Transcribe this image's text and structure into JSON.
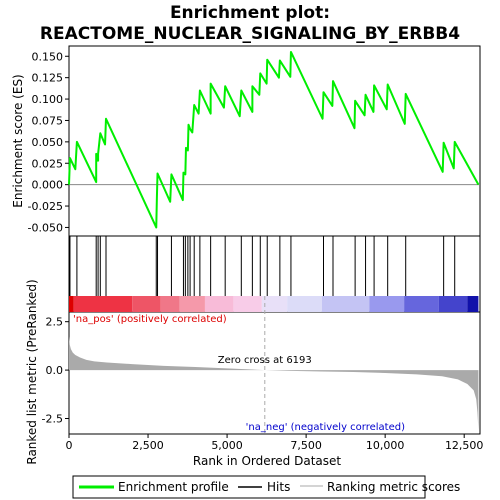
{
  "chart_data": {
    "type": "line",
    "title_line1": "Enrichment plot:",
    "title_line2": "REACTOME_NUCLEAR_SIGNALING_BY_ERBB4",
    "xlabel": "Rank in Ordered Dataset",
    "ylabel_top": "Enrichment score (ES)",
    "ylabel_bottom": "Ranked list metric (PreRanked)",
    "xlim": [
      0,
      13000
    ],
    "es_ylim": [
      -0.06,
      0.162
    ],
    "metric_ylim": [
      -3.3,
      3.0
    ],
    "x_ticks": [
      {
        "value": 0,
        "label": "0"
      },
      {
        "value": 2500,
        "label": "2,500"
      },
      {
        "value": 5000,
        "label": "5,000"
      },
      {
        "value": 7500,
        "label": "7,500"
      },
      {
        "value": 10000,
        "label": "10,000"
      },
      {
        "value": 12500,
        "label": "12,500"
      }
    ],
    "es_ticks": [
      {
        "value": 0.15,
        "label": "0.150"
      },
      {
        "value": 0.125,
        "label": "0.125"
      },
      {
        "value": 0.1,
        "label": "0.100"
      },
      {
        "value": 0.075,
        "label": "0.075"
      },
      {
        "value": 0.05,
        "label": "0.050"
      },
      {
        "value": 0.025,
        "label": "0.025"
      },
      {
        "value": 0.0,
        "label": "0.000"
      },
      {
        "value": -0.025,
        "label": "-0.025"
      },
      {
        "value": -0.05,
        "label": "-0.050"
      }
    ],
    "metric_ticks": [
      {
        "value": 2.5,
        "label": "2.5"
      },
      {
        "value": 0.0,
        "label": "0.0"
      },
      {
        "value": -2.5,
        "label": "-2.5"
      }
    ],
    "hits": [
      30,
      250,
      860,
      920,
      990,
      1170,
      2760,
      2800,
      3240,
      3620,
      3680,
      3760,
      3830,
      3960,
      4140,
      4480,
      4940,
      5450,
      5800,
      6050,
      6270,
      6670,
      7020,
      8050,
      8350,
      9050,
      9380,
      9650,
      10080,
      10650,
      11850,
      12200
    ],
    "es_profile": [
      [
        0,
        0.0
      ],
      [
        30,
        0.031
      ],
      [
        200,
        0.018
      ],
      [
        250,
        0.05
      ],
      [
        860,
        0.003
      ],
      [
        860,
        0.036
      ],
      [
        920,
        0.028
      ],
      [
        920,
        0.036
      ],
      [
        990,
        0.06
      ],
      [
        1140,
        0.047
      ],
      [
        1170,
        0.077
      ],
      [
        2760,
        -0.05
      ],
      [
        2780,
        -0.015
      ],
      [
        2800,
        0.013
      ],
      [
        3200,
        -0.02
      ],
      [
        3240,
        0.012
      ],
      [
        3600,
        -0.018
      ],
      [
        3620,
        0.014
      ],
      [
        3680,
        0.012
      ],
      [
        3700,
        0.043
      ],
      [
        3760,
        0.04
      ],
      [
        3780,
        0.07
      ],
      [
        3830,
        0.065
      ],
      [
        3900,
        0.061
      ],
      [
        3960,
        0.093
      ],
      [
        4100,
        0.083
      ],
      [
        4140,
        0.11
      ],
      [
        4480,
        0.083
      ],
      [
        4480,
        0.118
      ],
      [
        4900,
        0.09
      ],
      [
        4940,
        0.115
      ],
      [
        5400,
        0.08
      ],
      [
        5450,
        0.11
      ],
      [
        5800,
        0.085
      ],
      [
        5800,
        0.115
      ],
      [
        6020,
        0.105
      ],
      [
        6050,
        0.13
      ],
      [
        6250,
        0.118
      ],
      [
        6270,
        0.146
      ],
      [
        6640,
        0.125
      ],
      [
        6670,
        0.145
      ],
      [
        7000,
        0.126
      ],
      [
        7020,
        0.155
      ],
      [
        8020,
        0.077
      ],
      [
        8050,
        0.108
      ],
      [
        8330,
        0.092
      ],
      [
        8350,
        0.121
      ],
      [
        9030,
        0.066
      ],
      [
        9050,
        0.098
      ],
      [
        9350,
        0.081
      ],
      [
        9380,
        0.105
      ],
      [
        9630,
        0.085
      ],
      [
        9650,
        0.116
      ],
      [
        10050,
        0.088
      ],
      [
        10080,
        0.117
      ],
      [
        10620,
        0.071
      ],
      [
        10650,
        0.106
      ],
      [
        11820,
        0.015
      ],
      [
        11850,
        0.049
      ],
      [
        12170,
        0.019
      ],
      [
        12200,
        0.05
      ],
      [
        12950,
        0.0
      ]
    ],
    "metric_curve": [
      [
        0,
        1.75
      ],
      [
        25,
        1.3
      ],
      [
        60,
        1.08
      ],
      [
        120,
        0.9
      ],
      [
        200,
        0.78
      ],
      [
        350,
        0.65
      ],
      [
        550,
        0.53
      ],
      [
        800,
        0.45
      ],
      [
        1200,
        0.39
      ],
      [
        2000,
        0.31
      ],
      [
        3000,
        0.22
      ],
      [
        4000,
        0.16
      ],
      [
        5000,
        0.09
      ],
      [
        6193,
        0.0
      ],
      [
        7000,
        -0.04
      ],
      [
        8000,
        -0.07
      ],
      [
        9000,
        -0.1
      ],
      [
        10000,
        -0.15
      ],
      [
        11000,
        -0.22
      ],
      [
        11800,
        -0.32
      ],
      [
        12300,
        -0.48
      ],
      [
        12600,
        -0.72
      ],
      [
        12800,
        -1.05
      ],
      [
        12880,
        -1.5
      ],
      [
        12920,
        -2.2
      ],
      [
        12950,
        -3.1
      ]
    ],
    "zero_cross_rank": 6193,
    "zero_cross_label": "Zero cross at 6193",
    "pos_label": "'na_pos' (positively correlated)",
    "neg_label": "'na_neg' (negatively correlated)",
    "legend": {
      "enrichment_profile": "Enrichment profile",
      "hits": "Hits",
      "ranking_metric": "Ranking metric scores"
    },
    "colors": {
      "profile": "#00ee00",
      "pos_label": "#dd0000",
      "neg_label": "#0000cc",
      "metric_fill": "#aaaaaa",
      "zero_line": "#aaaaaa"
    },
    "heatmap_segments": [
      {
        "start": 0,
        "end": 150,
        "color": "#dd0000"
      },
      {
        "start": 150,
        "end": 2000,
        "color": "#ee3344"
      },
      {
        "start": 2000,
        "end": 2900,
        "color": "#ee5566"
      },
      {
        "start": 2900,
        "end": 3500,
        "color": "#f07788"
      },
      {
        "start": 3500,
        "end": 4300,
        "color": "#f599aa"
      },
      {
        "start": 4300,
        "end": 5200,
        "color": "#f8bbd8"
      },
      {
        "start": 5200,
        "end": 6100,
        "color": "#f8cce8"
      },
      {
        "start": 6100,
        "end": 6900,
        "color": "#e8e0f8"
      },
      {
        "start": 6900,
        "end": 8000,
        "color": "#dcdcf8"
      },
      {
        "start": 8000,
        "end": 9500,
        "color": "#c4c4f4"
      },
      {
        "start": 9500,
        "end": 10600,
        "color": "#9999ee"
      },
      {
        "start": 10600,
        "end": 11700,
        "color": "#6666dd"
      },
      {
        "start": 11700,
        "end": 12600,
        "color": "#4444cc"
      },
      {
        "start": 12600,
        "end": 12950,
        "color": "#1111aa"
      }
    ]
  }
}
